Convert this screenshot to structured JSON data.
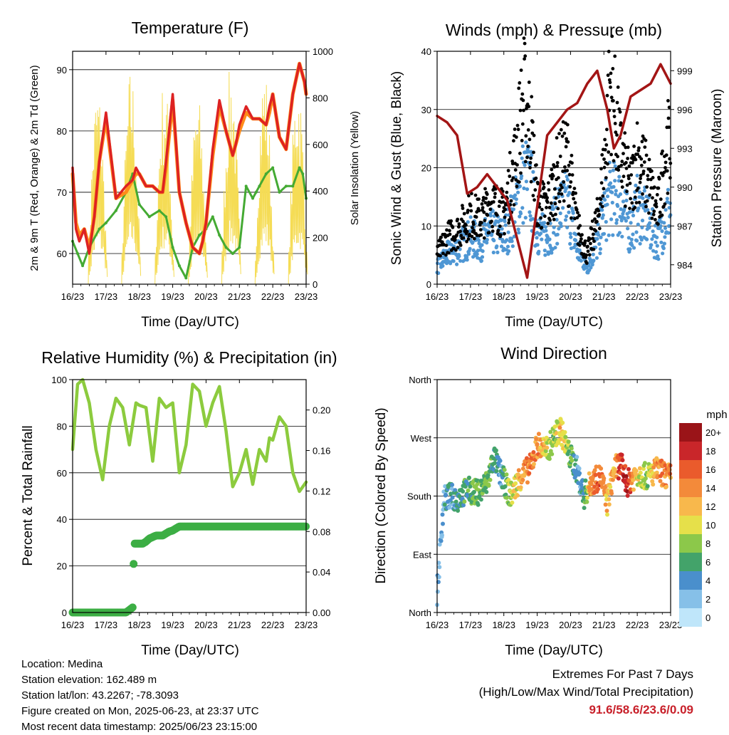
{
  "colors": {
    "t2m": "#ff8c1a",
    "t9m": "#dd2222",
    "td": "#44aa33",
    "sol": "#f5dc55",
    "wind": "#4f97d4",
    "gust": "#000000",
    "pres": "#a31515",
    "rh": "#8ccb3e",
    "precip": "#3cae44"
  },
  "footer": {
    "location": "Location: Medina",
    "elevation": "Station elevation: 162.489 m",
    "latlon": "Station lat/lon: 43.2267; -78.3093",
    "created": "Figure created on Mon, 2025-06-23, at 23:37 UTC",
    "recent": "Most recent data timestamp: 2025/06/23 23:15:00"
  },
  "extremes": {
    "title": "Extremes For Past 7 Days",
    "subtitle": "(High/Low/Max Wind/Total Precipitation)",
    "values": "91.6/58.6/23.6/0.09"
  },
  "chart_data": [
    {
      "type": "line",
      "title": "Temperature (F)",
      "xlabel": "Time (Day/UTC)",
      "ylabel": "2m & 9m T (Red, Orange) & 2m Td (Green)",
      "ylabel2": "Solar Insolation (Yellow)",
      "xticks": [
        "16/23",
        "17/23",
        "18/23",
        "19/23",
        "20/23",
        "21/23",
        "22/23",
        "23/23"
      ],
      "ylim": [
        55,
        93
      ],
      "yticks": [
        60,
        70,
        80,
        90
      ],
      "ylim2": [
        0,
        1000
      ],
      "yticks2": [
        0,
        200,
        400,
        600,
        800,
        1000
      ],
      "series": {
        "temp_9m": {
          "x": [
            0,
            0.1,
            0.2,
            0.35,
            0.5,
            0.65,
            0.8,
            1.0,
            1.3,
            1.6,
            1.8,
            1.9,
            2.0,
            2.2,
            2.4,
            2.6,
            2.7,
            2.8,
            3.0,
            3.2,
            3.4,
            3.6,
            3.8,
            3.9,
            4.0,
            4.2,
            4.4,
            4.6,
            4.8,
            4.9,
            5.0,
            5.2,
            5.4,
            5.6,
            5.8,
            5.9,
            6.0,
            6.2,
            6.4,
            6.6,
            6.8,
            6.95,
            7.0
          ],
          "y": [
            74,
            64,
            62,
            64,
            60,
            66,
            75,
            83,
            69,
            71,
            72,
            74,
            73,
            71,
            71,
            70,
            70,
            75,
            86,
            70,
            65,
            61,
            60,
            62,
            65,
            77,
            85,
            80,
            76,
            78,
            81,
            84,
            82,
            82,
            81,
            84,
            86,
            79,
            77,
            86,
            91,
            88,
            86
          ]
        },
        "temp_2m": {
          "x": [
            0,
            0.1,
            0.2,
            0.35,
            0.5,
            0.65,
            0.8,
            1.0,
            1.3,
            1.6,
            1.8,
            1.9,
            2.0,
            2.2,
            2.4,
            2.6,
            2.7,
            2.8,
            3.0,
            3.2,
            3.4,
            3.6,
            3.8,
            3.9,
            4.0,
            4.2,
            4.4,
            4.6,
            4.8,
            4.9,
            5.0,
            5.2,
            5.4,
            5.6,
            5.8,
            5.9,
            6.0,
            6.2,
            6.4,
            6.6,
            6.8,
            6.95,
            7.0
          ],
          "y": [
            73,
            65,
            63,
            64,
            61,
            66,
            75,
            82,
            69,
            70,
            72,
            73,
            73,
            71,
            71,
            70,
            70,
            74,
            85,
            70,
            65,
            61,
            60,
            62,
            65,
            76,
            84,
            80,
            76,
            78,
            80,
            83,
            82,
            82,
            81,
            83,
            86,
            79,
            77,
            86,
            91,
            88,
            86
          ]
        },
        "dewpoint": {
          "x": [
            0,
            0.15,
            0.3,
            0.5,
            0.8,
            1.0,
            1.3,
            1.6,
            1.8,
            2.0,
            2.3,
            2.6,
            2.8,
            3.0,
            3.2,
            3.4,
            3.6,
            3.8,
            4.0,
            4.2,
            4.4,
            4.6,
            4.8,
            5.0,
            5.2,
            5.4,
            5.5,
            5.6,
            5.8,
            6.0,
            6.2,
            6.4,
            6.6,
            6.8,
            6.9,
            7.0
          ],
          "y": [
            62,
            60,
            58,
            61,
            64,
            65,
            67,
            70,
            73,
            68,
            66,
            67,
            66,
            61,
            58,
            56,
            61,
            63,
            64,
            66,
            63,
            61,
            60,
            61,
            71,
            69,
            70,
            71,
            73,
            74,
            70,
            71,
            71,
            74,
            73,
            69
          ]
        },
        "solar_days": [
          0,
          1,
          2,
          3,
          4,
          5,
          6
        ],
        "solar_peaks": [
          870,
          940,
          900,
          830,
          960,
          950,
          920
        ]
      }
    },
    {
      "type": "scatter",
      "title": "Winds (mph) & Pressure (mb)",
      "xlabel": "Time (Day/UTC)",
      "ylabel": "Sonic Wind & Gust (Blue, Black)",
      "ylabel2": "Station Pressure (Maroon)",
      "xticks": [
        "16/23",
        "17/23",
        "18/23",
        "19/23",
        "20/23",
        "21/23",
        "22/23",
        "23/23"
      ],
      "ylim": [
        0,
        40
      ],
      "yticks": [
        0,
        10,
        20,
        30,
        40
      ],
      "ylim2": [
        982.5,
        1000.5
      ],
      "yticks2": [
        984,
        987,
        990,
        993,
        996,
        999
      ],
      "series": {
        "wind_mean": {
          "x": [
            0,
            0.3,
            0.6,
            1.0,
            1.3,
            1.6,
            2.0,
            2.3,
            2.6,
            2.8,
            3.0,
            3.3,
            3.6,
            3.9,
            4.2,
            4.5,
            4.8,
            5.0,
            5.2,
            5.5,
            5.8,
            6.0,
            6.3,
            6.6,
            6.9,
            7.0
          ],
          "y": [
            3,
            5,
            6,
            8,
            7,
            9,
            8,
            12,
            18,
            17,
            9,
            8,
            12,
            14,
            6,
            3,
            7,
            12,
            15,
            14,
            9,
            13,
            11,
            7,
            12,
            13
          ]
        },
        "gust": {
          "x": [
            0,
            0.3,
            0.6,
            1.0,
            1.3,
            1.6,
            2.0,
            2.3,
            2.6,
            2.8,
            3.0,
            3.3,
            3.6,
            3.9,
            4.2,
            4.5,
            4.8,
            5.0,
            5.2,
            5.5,
            5.8,
            6.0,
            6.3,
            6.6,
            6.9,
            7.0
          ],
          "y": [
            5,
            8,
            9,
            12,
            11,
            14,
            12,
            20,
            32,
            27,
            14,
            13,
            19,
            22,
            10,
            5,
            11,
            20,
            35,
            22,
            16,
            22,
            18,
            12,
            24,
            23
          ]
        },
        "pressure": {
          "x": [
            0,
            0.3,
            0.6,
            0.9,
            1.2,
            1.5,
            1.8,
            2.1,
            2.4,
            2.7,
            3.0,
            3.3,
            3.6,
            3.9,
            4.2,
            4.5,
            4.8,
            5.1,
            5.3,
            5.5,
            5.8,
            6.1,
            6.4,
            6.7,
            6.9,
            7.0
          ],
          "y": [
            995.5,
            995,
            994,
            989.5,
            990,
            991,
            990,
            989,
            986,
            983,
            988.5,
            994,
            995,
            996,
            996.5,
            998,
            999,
            996,
            993,
            994,
            997,
            997.5,
            998,
            999.5,
            998.5,
            998
          ]
        }
      }
    },
    {
      "type": "line",
      "title": "Relative Humidity (%) & Precipitation (in)",
      "xlabel": "Time (Day/UTC)",
      "ylabel": "Percent & Total Rainfall",
      "xticks": [
        "16/23",
        "17/23",
        "18/23",
        "19/23",
        "20/23",
        "21/23",
        "22/23",
        "23/23"
      ],
      "ylim": [
        0,
        100
      ],
      "yticks": [
        0,
        20,
        40,
        60,
        80,
        100
      ],
      "ylim2": [
        0,
        0.23
      ],
      "yticks2": [
        0.0,
        0.04,
        0.08,
        0.12,
        0.16,
        0.2
      ],
      "series": {
        "rh": {
          "x": [
            0,
            0.15,
            0.3,
            0.5,
            0.7,
            0.9,
            1.1,
            1.3,
            1.5,
            1.7,
            1.9,
            2.0,
            2.2,
            2.4,
            2.6,
            2.8,
            3.0,
            3.2,
            3.4,
            3.6,
            3.8,
            4.0,
            4.2,
            4.4,
            4.6,
            4.8,
            5.0,
            5.2,
            5.4,
            5.6,
            5.8,
            5.9,
            6.0,
            6.2,
            6.4,
            6.6,
            6.8,
            7.0
          ],
          "y": [
            70,
            98,
            100,
            90,
            70,
            57,
            80,
            92,
            88,
            72,
            90,
            89,
            88,
            65,
            92,
            88,
            90,
            60,
            72,
            98,
            95,
            80,
            90,
            97,
            78,
            54,
            60,
            70,
            55,
            70,
            65,
            75,
            74,
            84,
            80,
            60,
            52,
            56
          ]
        },
        "precip": {
          "x": [
            0,
            0.2,
            0.4,
            0.6,
            0.8,
            1.0,
            1.2,
            1.4,
            1.6,
            1.8,
            1.83,
            1.85,
            1.9,
            2.0,
            2.1,
            2.2,
            2.3,
            2.5,
            2.7,
            2.9,
            3.0,
            3.2,
            3.5,
            4.0,
            4.5,
            5.0,
            5.5,
            6.0,
            6.5,
            7.0
          ],
          "y": [
            0,
            0,
            0,
            0,
            0,
            0,
            0,
            0,
            0,
            0.005,
            0.048,
            0.068,
            0.068,
            0.068,
            0.068,
            0.07,
            0.073,
            0.076,
            0.076,
            0.08,
            0.081,
            0.085,
            0.085,
            0.085,
            0.085,
            0.085,
            0.085,
            0.085,
            0.085,
            0.085
          ]
        }
      }
    },
    {
      "type": "scatter",
      "title": "Wind Direction",
      "xlabel": "Time (Day/UTC)",
      "ylabel": "Direction (Colored By Speed)",
      "xticks": [
        "16/23",
        "17/23",
        "18/23",
        "19/23",
        "20/23",
        "21/23",
        "22/23",
        "23/23"
      ],
      "ylim": [
        0,
        360
      ],
      "yticks": [
        "North",
        "East",
        "South",
        "West",
        "North"
      ],
      "colorbar": {
        "unit": "mph",
        "labels": [
          "0",
          "2",
          "4",
          "6",
          "8",
          "10",
          "12",
          "14",
          "16",
          "18",
          "20+"
        ],
        "colors": [
          "#bfe6fa",
          "#86c0e8",
          "#4a8fcc",
          "#43a36a",
          "#8cc84a",
          "#e6e04a",
          "#f8b84c",
          "#f38a3a",
          "#ea5b2c",
          "#c9262a",
          "#9a1418"
        ]
      },
      "series": {
        "direction": {
          "x": [
            0,
            0.2,
            0.4,
            0.6,
            0.9,
            1.2,
            1.5,
            1.7,
            1.9,
            2.2,
            2.5,
            2.8,
            3.0,
            3.3,
            3.5,
            3.7,
            3.9,
            4.2,
            4.4,
            4.6,
            4.9,
            5.1,
            5.3,
            5.5,
            5.7,
            6.0,
            6.3,
            6.6,
            6.9,
            7.0
          ],
          "y": [
            30,
            175,
            180,
            175,
            190,
            185,
            200,
            240,
            215,
            180,
            210,
            225,
            260,
            250,
            270,
            285,
            250,
            220,
            180,
            200,
            210,
            170,
            220,
            230,
            200,
            215,
            210,
            220,
            210,
            210
          ]
        },
        "speed": {
          "x": [
            0,
            0.2,
            0.4,
            0.6,
            0.9,
            1.2,
            1.5,
            1.7,
            1.9,
            2.2,
            2.5,
            2.8,
            3.0,
            3.3,
            3.5,
            3.7,
            3.9,
            4.2,
            4.4,
            4.6,
            4.9,
            5.1,
            5.3,
            5.5,
            5.7,
            6.0,
            6.3,
            6.6,
            6.9,
            7.0
          ],
          "y": [
            2,
            3,
            4,
            5,
            6,
            7,
            7,
            5,
            4,
            9,
            12,
            15,
            14,
            10,
            8,
            12,
            8,
            4,
            5,
            14,
            16,
            11,
            12,
            17,
            19,
            10,
            8,
            14,
            15,
            13
          ]
        }
      }
    }
  ]
}
